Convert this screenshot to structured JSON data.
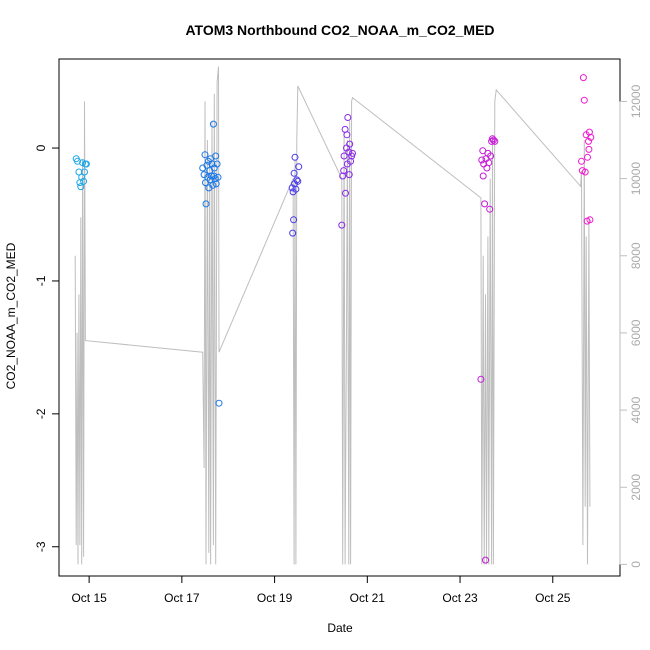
{
  "chart_data": {
    "type": "scatter",
    "title": "ATOM3 Northbound CO2_NOAA_m_CO2_MED",
    "xlabel": "Date",
    "ylabel": "CO2_NOAA_m_CO2_MED",
    "x_unit": "day of October",
    "xlim": [
      14.35,
      26.45
    ],
    "ylim": [
      -3.22,
      0.67
    ],
    "x_ticks": [
      {
        "value": 15,
        "label": "Oct 15"
      },
      {
        "value": 17,
        "label": "Oct 17"
      },
      {
        "value": 19,
        "label": "Oct 19"
      },
      {
        "value": 21,
        "label": "Oct 21"
      },
      {
        "value": 23,
        "label": "Oct 23"
      },
      {
        "value": 25,
        "label": "Oct 25"
      }
    ],
    "y_ticks": [
      {
        "value": 0,
        "label": "0"
      },
      {
        "value": -1,
        "label": "-1"
      },
      {
        "value": -2,
        "label": "-2"
      },
      {
        "value": -3,
        "label": "-3"
      }
    ],
    "secondary_axis": {
      "ylim": [
        -300,
        13100
      ],
      "color": "#bebebe",
      "ticks": [
        {
          "value": 0,
          "label": "0"
        },
        {
          "value": 2000,
          "label": "2000"
        },
        {
          "value": 4000,
          "label": "4000"
        },
        {
          "value": 6000,
          "label": "6000"
        },
        {
          "value": 8000,
          "label": "8000"
        },
        {
          "value": 10000,
          "label": "10000"
        },
        {
          "value": 12000,
          "label": "12000"
        }
      ]
    },
    "points": [
      {
        "x": 14.72,
        "y": -0.08,
        "color": "#1aa7e8"
      },
      {
        "x": 14.75,
        "y": -0.1,
        "color": "#1aa7e8"
      },
      {
        "x": 14.78,
        "y": -0.18,
        "color": "#1aa7e8"
      },
      {
        "x": 14.8,
        "y": -0.26,
        "color": "#1aa7e8"
      },
      {
        "x": 14.82,
        "y": -0.29,
        "color": "#1aa7e8"
      },
      {
        "x": 14.84,
        "y": -0.22,
        "color": "#1aa7e8"
      },
      {
        "x": 14.86,
        "y": -0.11,
        "color": "#1aa7e8"
      },
      {
        "x": 14.88,
        "y": -0.25,
        "color": "#1aa7e8"
      },
      {
        "x": 14.9,
        "y": -0.18,
        "color": "#1aa7e8"
      },
      {
        "x": 14.92,
        "y": -0.12,
        "color": "#1aa7e8"
      },
      {
        "x": 14.94,
        "y": -0.12,
        "color": "#1aa7e8"
      },
      {
        "x": 17.45,
        "y": -0.15,
        "color": "#1a78e8"
      },
      {
        "x": 17.48,
        "y": -0.2,
        "color": "#1a78e8"
      },
      {
        "x": 17.5,
        "y": -0.05,
        "color": "#1a78e8"
      },
      {
        "x": 17.51,
        "y": -0.26,
        "color": "#1a78e8"
      },
      {
        "x": 17.52,
        "y": -0.42,
        "color": "#1a78e8"
      },
      {
        "x": 17.54,
        "y": -0.13,
        "color": "#1a78e8"
      },
      {
        "x": 17.56,
        "y": -0.22,
        "color": "#1a78e8"
      },
      {
        "x": 17.57,
        "y": -0.1,
        "color": "#1a78e8"
      },
      {
        "x": 17.58,
        "y": -0.3,
        "color": "#1a78e8"
      },
      {
        "x": 17.6,
        "y": -0.17,
        "color": "#1a78e8"
      },
      {
        "x": 17.61,
        "y": -0.24,
        "color": "#1a78e8"
      },
      {
        "x": 17.62,
        "y": -0.08,
        "color": "#1a78e8"
      },
      {
        "x": 17.64,
        "y": -0.21,
        "color": "#1a78e8"
      },
      {
        "x": 17.65,
        "y": -0.12,
        "color": "#1a78e8"
      },
      {
        "x": 17.67,
        "y": -0.28,
        "color": "#1a78e8"
      },
      {
        "x": 17.68,
        "y": 0.18,
        "color": "#1a78e8"
      },
      {
        "x": 17.69,
        "y": -0.21,
        "color": "#1a78e8"
      },
      {
        "x": 17.7,
        "y": -0.15,
        "color": "#1a78e8"
      },
      {
        "x": 17.72,
        "y": -0.23,
        "color": "#1a78e8"
      },
      {
        "x": 17.73,
        "y": -0.06,
        "color": "#1a78e8"
      },
      {
        "x": 17.74,
        "y": -0.27,
        "color": "#1a78e8"
      },
      {
        "x": 17.76,
        "y": -0.12,
        "color": "#1a78e8"
      },
      {
        "x": 17.78,
        "y": -0.22,
        "color": "#1a78e8"
      },
      {
        "x": 17.8,
        "y": -1.92,
        "color": "#1a78e8"
      },
      {
        "x": 19.38,
        "y": -0.3,
        "color": "#4a3ae8"
      },
      {
        "x": 19.39,
        "y": -0.64,
        "color": "#4a3ae8"
      },
      {
        "x": 19.4,
        "y": -0.33,
        "color": "#4a3ae8"
      },
      {
        "x": 19.41,
        "y": -0.54,
        "color": "#4a3ae8"
      },
      {
        "x": 19.42,
        "y": -0.19,
        "color": "#4a3ae8"
      },
      {
        "x": 19.43,
        "y": -0.27,
        "color": "#4a3ae8"
      },
      {
        "x": 19.44,
        "y": -0.07,
        "color": "#4a3ae8"
      },
      {
        "x": 19.46,
        "y": -0.31,
        "color": "#4a3ae8"
      },
      {
        "x": 19.48,
        "y": -0.24,
        "color": "#4a3ae8"
      },
      {
        "x": 19.5,
        "y": -0.25,
        "color": "#4a3ae8"
      },
      {
        "x": 19.52,
        "y": -0.14,
        "color": "#4a3ae8"
      },
      {
        "x": 20.45,
        "y": -0.58,
        "color": "#8a2ae8"
      },
      {
        "x": 20.47,
        "y": -0.21,
        "color": "#8a2ae8"
      },
      {
        "x": 20.49,
        "y": -0.17,
        "color": "#8a2ae8"
      },
      {
        "x": 20.5,
        "y": -0.06,
        "color": "#8a2ae8"
      },
      {
        "x": 20.52,
        "y": 0.14,
        "color": "#8a2ae8"
      },
      {
        "x": 20.53,
        "y": -0.34,
        "color": "#8a2ae8"
      },
      {
        "x": 20.55,
        "y": 0.0,
        "color": "#8a2ae8"
      },
      {
        "x": 20.56,
        "y": 0.1,
        "color": "#8a2ae8"
      },
      {
        "x": 20.57,
        "y": -0.12,
        "color": "#8a2ae8"
      },
      {
        "x": 20.58,
        "y": 0.23,
        "color": "#8a2ae8"
      },
      {
        "x": 20.6,
        "y": -0.03,
        "color": "#8a2ae8"
      },
      {
        "x": 20.61,
        "y": -0.2,
        "color": "#8a2ae8"
      },
      {
        "x": 20.62,
        "y": 0.03,
        "color": "#8a2ae8"
      },
      {
        "x": 20.64,
        "y": -0.1,
        "color": "#8a2ae8"
      },
      {
        "x": 20.66,
        "y": -0.06,
        "color": "#8a2ae8"
      },
      {
        "x": 20.68,
        "y": -0.04,
        "color": "#8a2ae8"
      },
      {
        "x": 23.45,
        "y": -1.74,
        "color": "#c71ad8"
      },
      {
        "x": 23.47,
        "y": -0.09,
        "color": "#c71ad8"
      },
      {
        "x": 23.49,
        "y": -0.02,
        "color": "#c71ad8"
      },
      {
        "x": 23.5,
        "y": -0.21,
        "color": "#c71ad8"
      },
      {
        "x": 23.51,
        "y": -0.12,
        "color": "#c71ad8"
      },
      {
        "x": 23.53,
        "y": -0.42,
        "color": "#c71ad8"
      },
      {
        "x": 23.55,
        "y": -3.1,
        "color": "#c71ad8"
      },
      {
        "x": 23.56,
        "y": -0.08,
        "color": "#c71ad8"
      },
      {
        "x": 23.58,
        "y": -0.15,
        "color": "#c71ad8"
      },
      {
        "x": 23.6,
        "y": -0.04,
        "color": "#c71ad8"
      },
      {
        "x": 23.62,
        "y": -0.11,
        "color": "#c71ad8"
      },
      {
        "x": 23.64,
        "y": -0.46,
        "color": "#c71ad8"
      },
      {
        "x": 23.66,
        "y": -0.06,
        "color": "#c71ad8"
      },
      {
        "x": 23.68,
        "y": 0.05,
        "color": "#c71ad8"
      },
      {
        "x": 23.7,
        "y": 0.07,
        "color": "#c71ad8"
      },
      {
        "x": 23.72,
        "y": 0.06,
        "color": "#c71ad8"
      },
      {
        "x": 23.75,
        "y": 0.05,
        "color": "#c71ad8"
      },
      {
        "x": 25.62,
        "y": -0.1,
        "color": "#f01ad0"
      },
      {
        "x": 25.64,
        "y": -0.17,
        "color": "#f01ad0"
      },
      {
        "x": 25.66,
        "y": 0.53,
        "color": "#f01ad0"
      },
      {
        "x": 25.68,
        "y": 0.36,
        "color": "#f01ad0"
      },
      {
        "x": 25.7,
        "y": -0.18,
        "color": "#f01ad0"
      },
      {
        "x": 25.72,
        "y": 0.1,
        "color": "#f01ad0"
      },
      {
        "x": 25.74,
        "y": -0.55,
        "color": "#f01ad0"
      },
      {
        "x": 25.75,
        "y": -0.07,
        "color": "#f01ad0"
      },
      {
        "x": 25.77,
        "y": 0.05,
        "color": "#f01ad0"
      },
      {
        "x": 25.78,
        "y": -0.01,
        "color": "#f01ad0"
      },
      {
        "x": 25.79,
        "y": 0.12,
        "color": "#f01ad0"
      },
      {
        "x": 25.8,
        "y": -0.54,
        "color": "#f01ad0"
      },
      {
        "x": 25.82,
        "y": 0.08,
        "color": "#f01ad0"
      }
    ],
    "secondary_line": [
      [
        14.7,
        8000
      ],
      [
        14.72,
        500
      ],
      [
        14.74,
        6000
      ],
      [
        14.76,
        0
      ],
      [
        14.78,
        7000
      ],
      [
        14.8,
        500
      ],
      [
        14.82,
        9000
      ],
      [
        14.84,
        0
      ],
      [
        14.86,
        10500
      ],
      [
        14.88,
        200
      ],
      [
        14.9,
        12000
      ],
      [
        14.92,
        5800
      ],
      [
        17.45,
        5500
      ],
      [
        17.48,
        2500
      ],
      [
        17.5,
        12000
      ],
      [
        17.52,
        0
      ],
      [
        17.55,
        11000
      ],
      [
        17.58,
        300
      ],
      [
        17.6,
        10500
      ],
      [
        17.62,
        0
      ],
      [
        17.65,
        11500
      ],
      [
        17.68,
        500
      ],
      [
        17.7,
        12200
      ],
      [
        17.73,
        0
      ],
      [
        17.76,
        12500
      ],
      [
        17.79,
        12900
      ],
      [
        17.8,
        5500
      ],
      [
        19.4,
        10000
      ],
      [
        19.42,
        0
      ],
      [
        19.44,
        10500
      ],
      [
        19.46,
        0
      ],
      [
        19.48,
        11000
      ],
      [
        19.5,
        12400
      ],
      [
        20.45,
        10000
      ],
      [
        20.47,
        0
      ],
      [
        20.5,
        11200
      ],
      [
        20.52,
        0
      ],
      [
        20.55,
        6000
      ],
      [
        20.57,
        11000
      ],
      [
        20.6,
        0
      ],
      [
        20.62,
        11500
      ],
      [
        20.64,
        0
      ],
      [
        20.66,
        12000
      ],
      [
        20.68,
        12100
      ],
      [
        23.45,
        9500
      ],
      [
        23.47,
        0
      ],
      [
        23.5,
        8000
      ],
      [
        23.52,
        0
      ],
      [
        23.55,
        7000
      ],
      [
        23.57,
        0
      ],
      [
        23.6,
        8500
      ],
      [
        23.62,
        0
      ],
      [
        23.65,
        10000
      ],
      [
        23.68,
        0
      ],
      [
        23.7,
        11000
      ],
      [
        23.72,
        0
      ],
      [
        23.75,
        12000
      ],
      [
        23.78,
        12300
      ],
      [
        25.6,
        9800
      ],
      [
        25.62,
        10200
      ],
      [
        25.65,
        500
      ],
      [
        25.68,
        11000
      ],
      [
        25.7,
        1500
      ],
      [
        25.72,
        8500
      ],
      [
        25.75,
        0
      ],
      [
        25.78,
        9000
      ],
      [
        25.8,
        1500
      ]
    ]
  }
}
